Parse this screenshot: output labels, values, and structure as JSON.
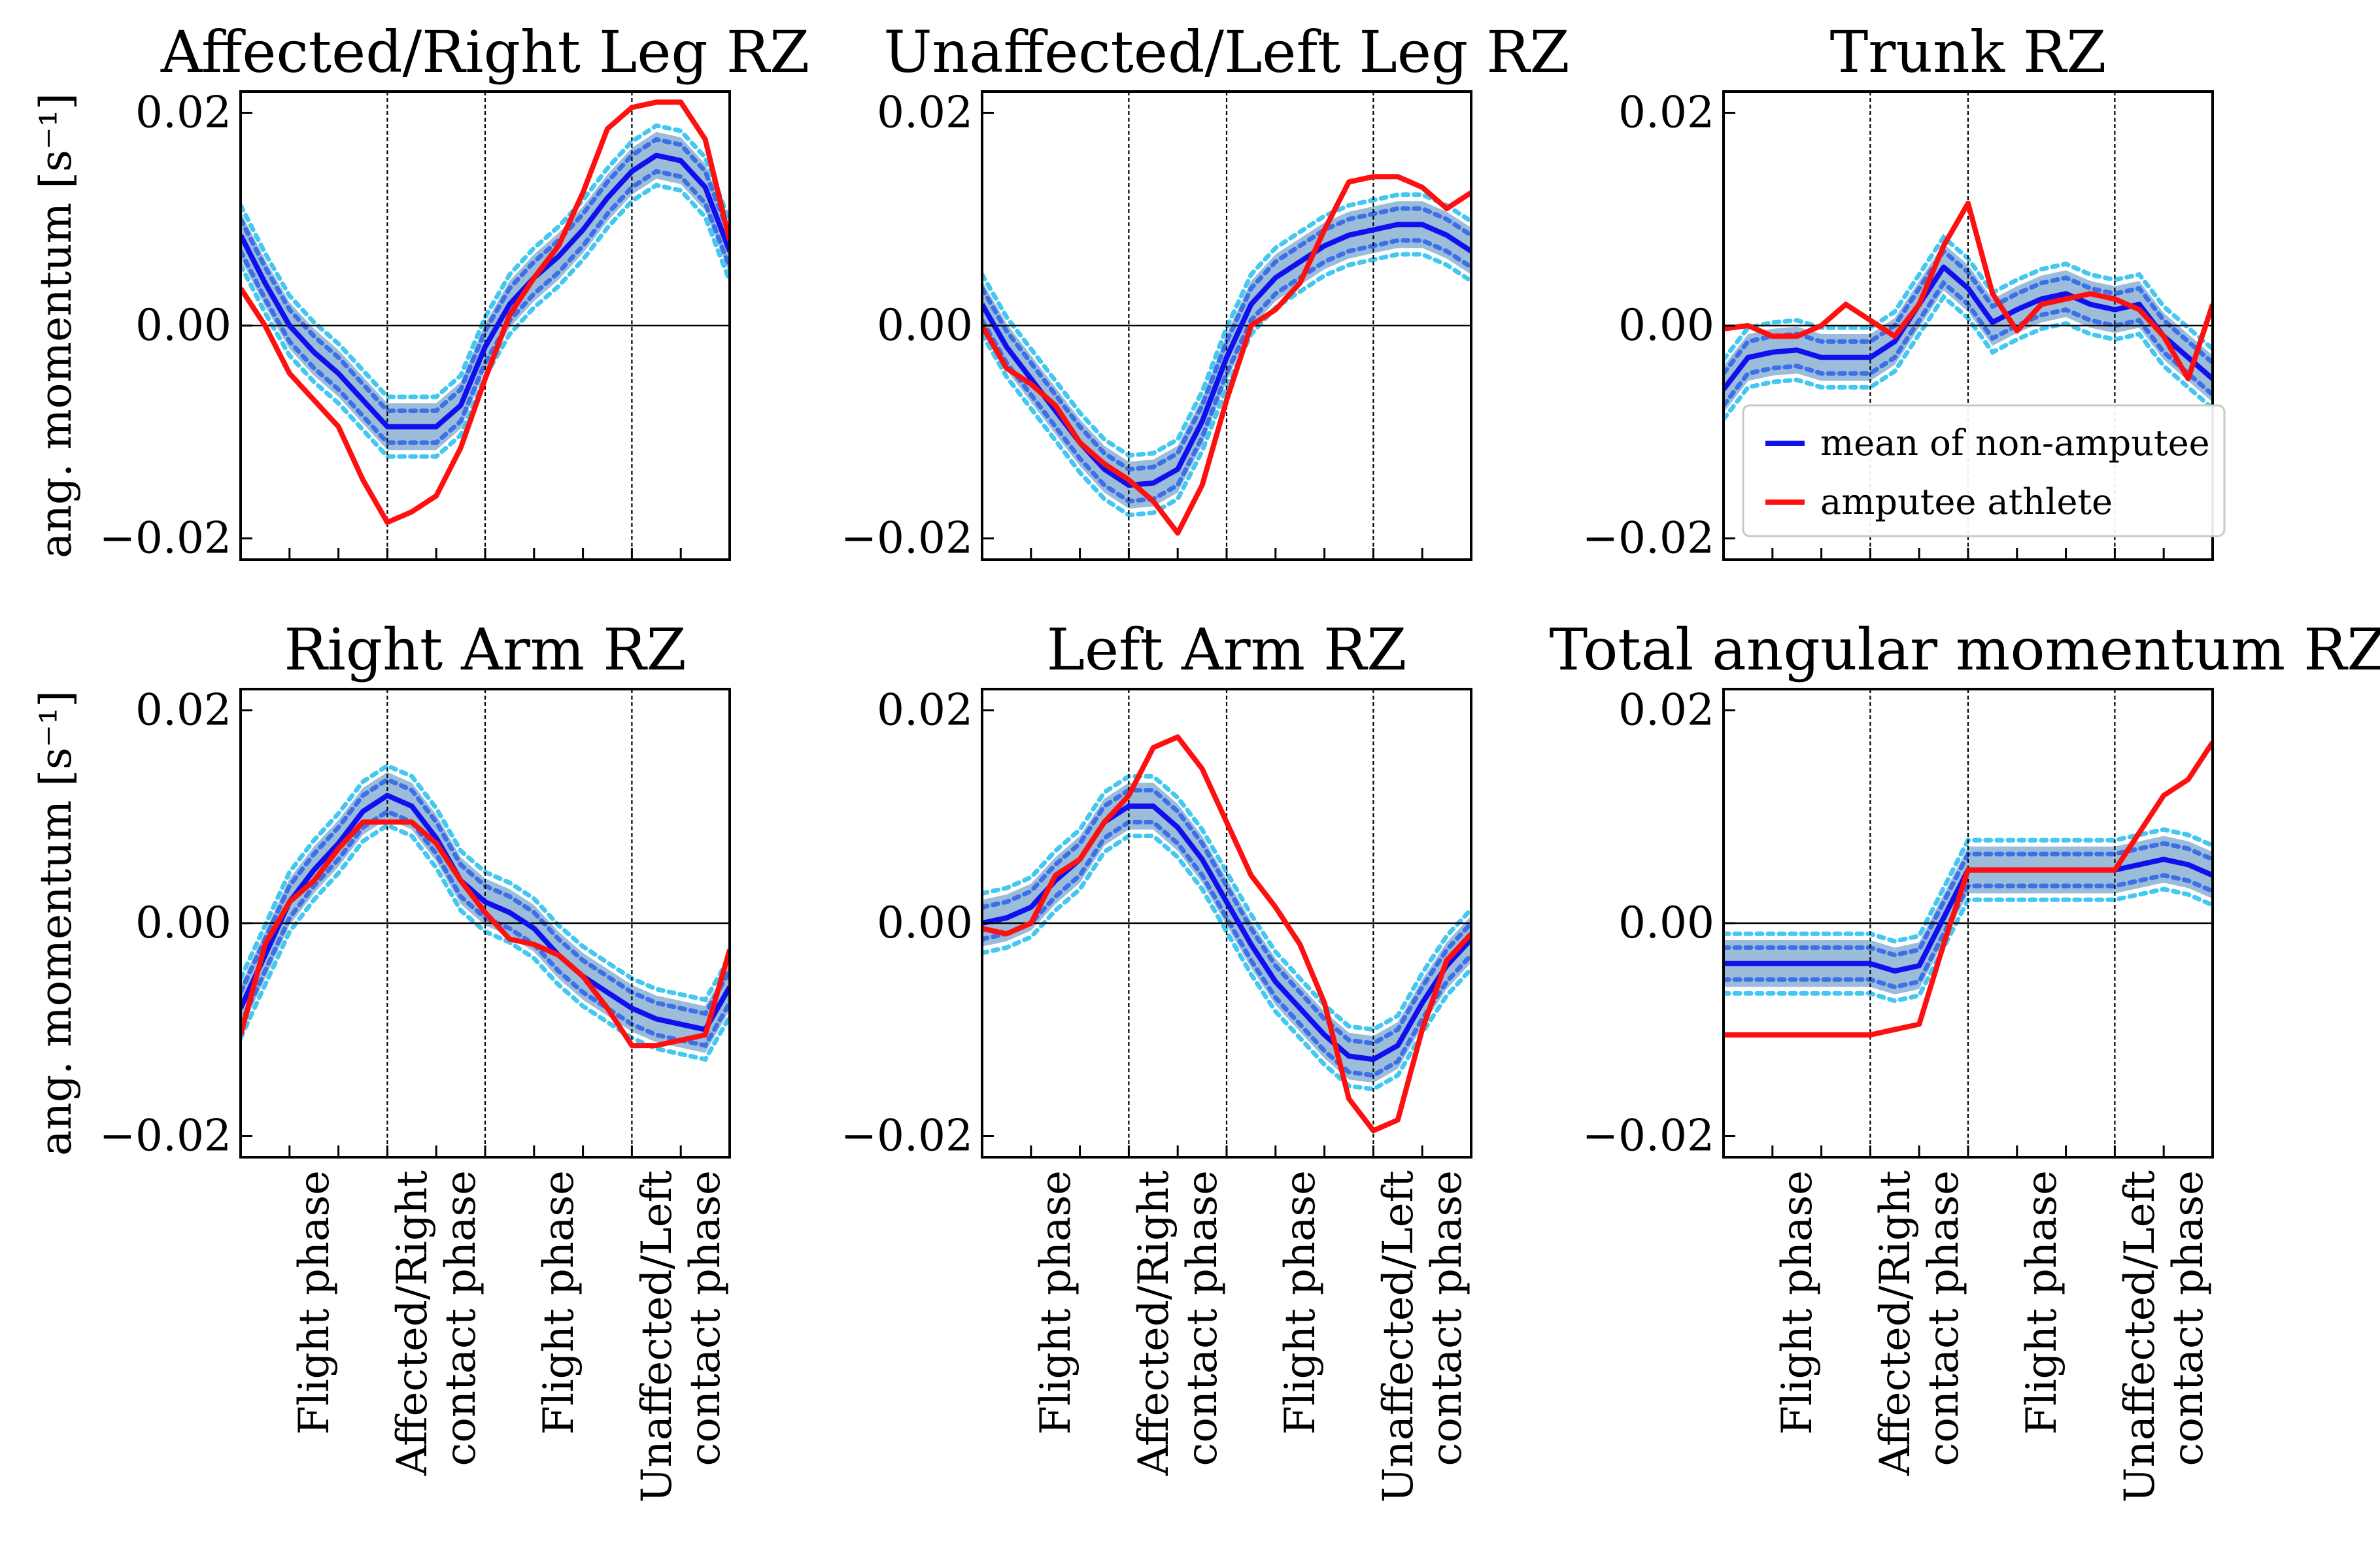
{
  "chart_data": {
    "type": "line",
    "layout": "2x3",
    "ylabel": "ang. momentum [s⁻¹]",
    "ylim": [
      -0.022,
      0.022
    ],
    "xlim": [
      0,
      1
    ],
    "yticks": [
      -0.02,
      0.0,
      0.02
    ],
    "ytick_labels": [
      "−0.02",
      "0.00",
      "0.02"
    ],
    "phase_boundaries": [
      0.3,
      0.5,
      0.8
    ],
    "phase_labels": [
      {
        "x": 0.15,
        "lines": [
          "Flight phase"
        ]
      },
      {
        "x": 0.4,
        "lines": [
          "Affected/Right",
          "contact phase"
        ]
      },
      {
        "x": 0.65,
        "lines": [
          "Flight phase"
        ]
      },
      {
        "x": 0.9,
        "lines": [
          "Unaffected/Left",
          "contact phase"
        ]
      }
    ],
    "legend": {
      "position": "lower-right (Trunk RZ panel)",
      "entries": [
        {
          "label": "mean of non-amputee",
          "color": "#1010ee"
        },
        {
          "label": "amputee athlete",
          "color": "#ff1010"
        }
      ]
    },
    "colors": {
      "mean": "#1010ee",
      "amputee": "#ff1010",
      "band": "#8ab2d4",
      "dot_inner": "#3d6fe8",
      "dot_outer": "#45c8f0"
    },
    "x": [
      0,
      0.05,
      0.1,
      0.15,
      0.2,
      0.25,
      0.3,
      0.35,
      0.4,
      0.45,
      0.5,
      0.55,
      0.6,
      0.65,
      0.7,
      0.75,
      0.8,
      0.85,
      0.9,
      0.95,
      1.0
    ],
    "panels": [
      {
        "title": "Affected/Right Leg RZ",
        "series": [
          {
            "name": "mean of non-amputee",
            "values": [
              0.0085,
              0.004,
              0.0,
              -0.0025,
              -0.0045,
              -0.007,
              -0.0095,
              -0.0095,
              -0.0095,
              -0.0075,
              -0.002,
              0.002,
              0.0045,
              0.0065,
              0.009,
              0.012,
              0.0145,
              0.016,
              0.0155,
              0.013,
              0.007
            ]
          },
          {
            "name": "amputee athlete",
            "values": [
              0.0035,
              0.0,
              -0.0045,
              -0.007,
              -0.0095,
              -0.0145,
              -0.0185,
              -0.0175,
              -0.016,
              -0.0115,
              -0.005,
              0.001,
              0.0045,
              0.0075,
              0.0125,
              0.0185,
              0.0205,
              0.021,
              0.021,
              0.0175,
              0.008
            ]
          }
        ]
      },
      {
        "title": "Unaffected/Left Leg RZ",
        "series": [
          {
            "name": "mean of non-amputee",
            "values": [
              0.002,
              -0.002,
              -0.005,
              -0.008,
              -0.011,
              -0.0135,
              -0.015,
              -0.0148,
              -0.0135,
              -0.009,
              -0.003,
              0.002,
              0.0045,
              0.006,
              0.0075,
              0.0085,
              0.009,
              0.0095,
              0.0095,
              0.0085,
              0.007
            ]
          },
          {
            "name": "amputee athlete",
            "values": [
              0.0,
              -0.004,
              -0.0055,
              -0.0075,
              -0.011,
              -0.013,
              -0.0145,
              -0.0165,
              -0.0195,
              -0.015,
              -0.007,
              0.0,
              0.0015,
              0.004,
              0.009,
              0.0135,
              0.014,
              0.014,
              0.013,
              0.011,
              0.0125
            ]
          }
        ]
      },
      {
        "title": "Trunk RZ",
        "series": [
          {
            "name": "mean of non-amputee",
            "values": [
              -0.006,
              -0.003,
              -0.0025,
              -0.0023,
              -0.003,
              -0.003,
              -0.003,
              -0.0015,
              0.002,
              0.0055,
              0.0035,
              0.0003,
              0.0015,
              0.0025,
              0.003,
              0.002,
              0.0015,
              0.002,
              -0.001,
              -0.003,
              -0.005
            ]
          },
          {
            "name": "amputee athlete",
            "values": [
              -0.0003,
              0.0,
              -0.001,
              -0.001,
              0.0,
              0.002,
              0.0005,
              -0.001,
              0.002,
              0.0075,
              0.0115,
              0.003,
              -0.0005,
              0.002,
              0.0025,
              0.003,
              0.0025,
              0.0015,
              -0.001,
              -0.005,
              0.002
            ]
          }
        ]
      },
      {
        "title": "Right Arm RZ",
        "series": [
          {
            "name": "mean of non-amputee",
            "values": [
              -0.008,
              -0.003,
              0.002,
              0.005,
              0.0075,
              0.0105,
              0.012,
              0.011,
              0.008,
              0.004,
              0.002,
              0.001,
              -0.0005,
              -0.003,
              -0.005,
              -0.0065,
              -0.008,
              -0.009,
              -0.0095,
              -0.01,
              -0.006
            ]
          },
          {
            "name": "amputee athlete",
            "values": [
              -0.0105,
              -0.002,
              0.002,
              0.004,
              0.007,
              0.0095,
              0.0095,
              0.0095,
              0.0075,
              0.004,
              0.001,
              -0.0015,
              -0.002,
              -0.003,
              -0.005,
              -0.008,
              -0.0115,
              -0.0115,
              -0.011,
              -0.0105,
              -0.0025
            ]
          }
        ]
      },
      {
        "title": "Left Arm RZ",
        "series": [
          {
            "name": "mean of non-amputee",
            "values": [
              0.0,
              0.0005,
              0.0015,
              0.004,
              0.006,
              0.0095,
              0.011,
              0.011,
              0.009,
              0.006,
              0.002,
              -0.002,
              -0.0055,
              -0.008,
              -0.0105,
              -0.0125,
              -0.0128,
              -0.0115,
              -0.0075,
              -0.004,
              -0.0015
            ]
          },
          {
            "name": "amputee athlete",
            "values": [
              -0.0005,
              -0.001,
              0.0,
              0.0045,
              0.006,
              0.0095,
              0.012,
              0.0165,
              0.0175,
              0.0145,
              0.0095,
              0.0045,
              0.0015,
              -0.002,
              -0.0075,
              -0.0165,
              -0.0195,
              -0.0185,
              -0.01,
              -0.0035,
              -0.001
            ]
          }
        ]
      },
      {
        "title": "Total angular momentum RZ",
        "series": [
          {
            "name": "mean of non-amputee",
            "values": [
              -0.0038,
              -0.0038,
              -0.0038,
              -0.0038,
              -0.0038,
              -0.0038,
              -0.0038,
              -0.0045,
              -0.004,
              0.0005,
              0.005,
              0.005,
              0.005,
              0.005,
              0.005,
              0.005,
              0.005,
              0.0055,
              0.006,
              0.0055,
              0.0045
            ]
          },
          {
            "name": "amputee athlete",
            "values": [
              -0.0105,
              -0.0105,
              -0.0105,
              -0.0105,
              -0.0105,
              -0.0105,
              -0.0105,
              -0.01,
              -0.0095,
              -0.002,
              0.005,
              0.005,
              0.005,
              0.005,
              0.005,
              0.005,
              0.005,
              0.0085,
              0.012,
              0.0135,
              0.017
            ]
          }
        ]
      }
    ]
  }
}
